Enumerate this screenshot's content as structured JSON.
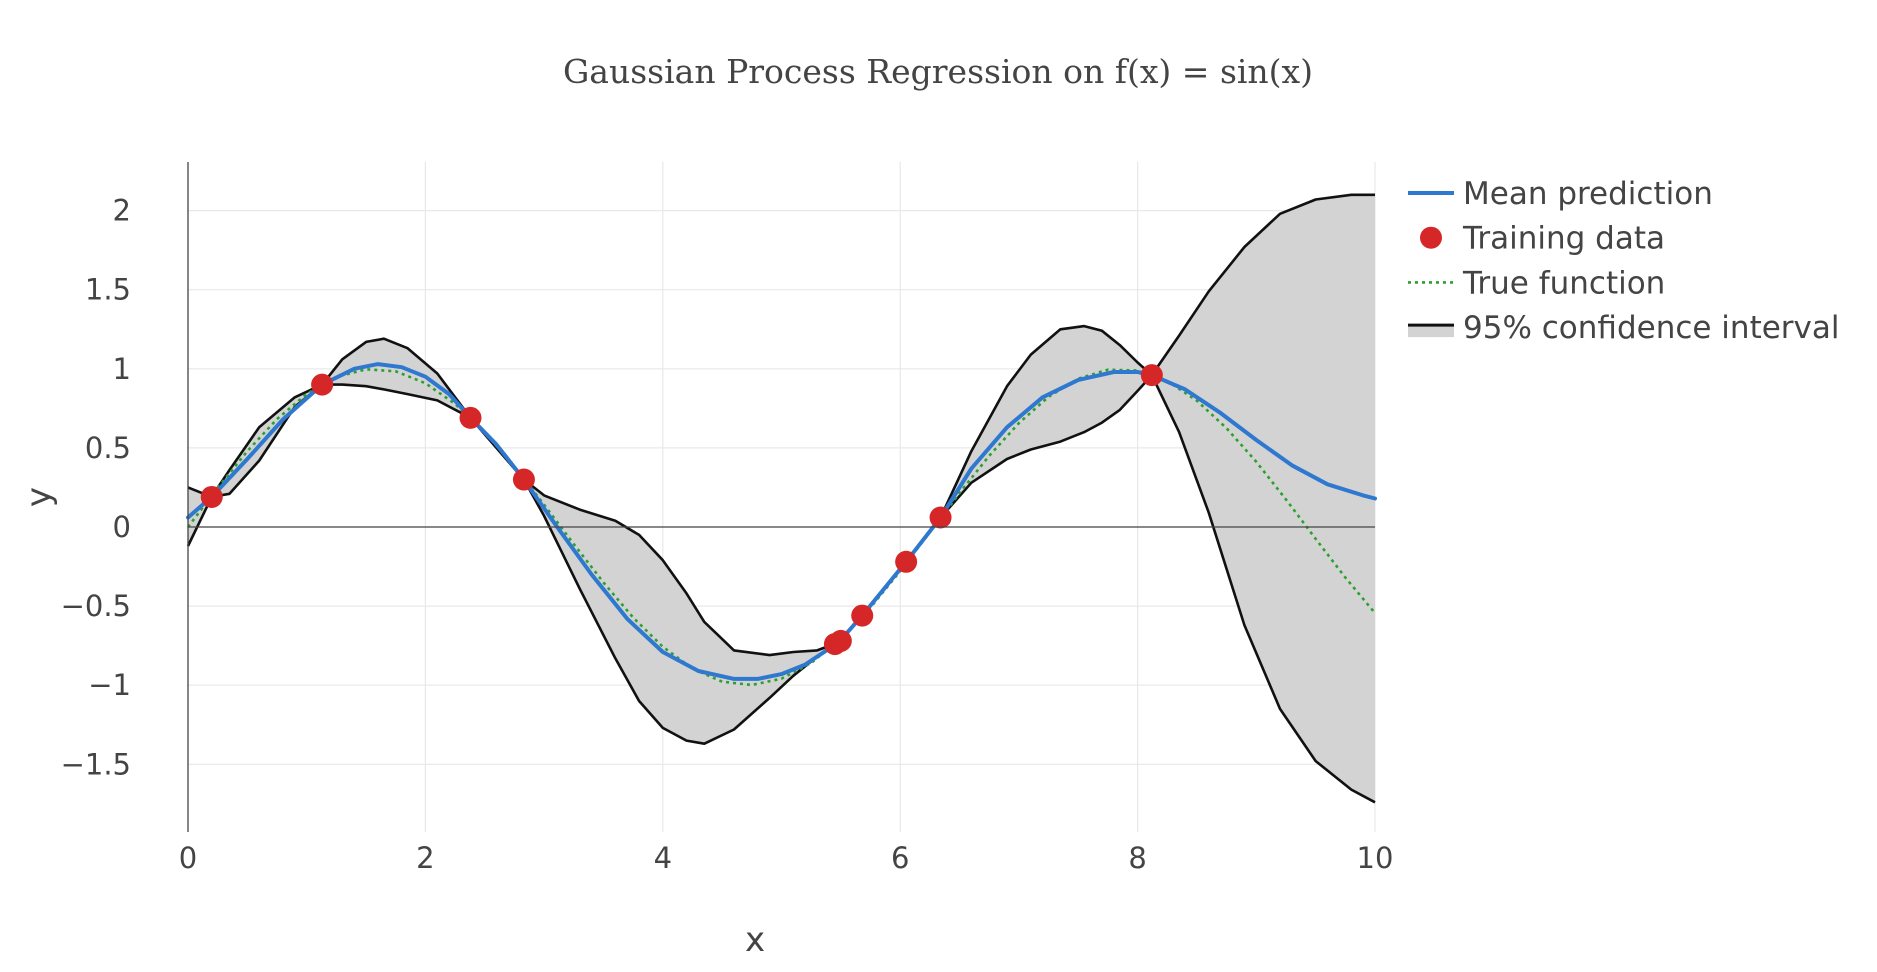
{
  "chart_data": {
    "type": "line",
    "title": "Gaussian Process Regression on f(x) = sin(x)",
    "xlabel": "x",
    "ylabel": "y",
    "xlim": [
      0,
      10
    ],
    "ylim": [
      -1.95,
      2.32
    ],
    "x_ticks": [
      0,
      2,
      4,
      6,
      8,
      10
    ],
    "y_ticks": [
      2,
      1.5,
      1,
      0.5,
      0,
      -0.5,
      -1,
      -1.5
    ],
    "x_tick_labels": [
      "0",
      "2",
      "4",
      "6",
      "8",
      "10"
    ],
    "y_tick_labels": [
      "2",
      "1.5",
      "1",
      "0.5",
      "0",
      "−0.5",
      "−1",
      "−1.5"
    ],
    "grid": true,
    "legend_position": "top-right outside",
    "colors": {
      "mean": "#2f78d0",
      "training": "#d62728",
      "true_function": "#2ca02c",
      "ci_line": "#111111",
      "ci_fill": "#d3d3d3"
    },
    "series": [
      {
        "name": "Mean prediction",
        "style": "solid",
        "x": [
          0,
          0.2,
          0.5,
          0.8,
          1.13,
          1.4,
          1.6,
          1.8,
          2.0,
          2.2,
          2.38,
          2.6,
          2.83,
          3.1,
          3.4,
          3.7,
          4.0,
          4.3,
          4.6,
          4.8,
          5.0,
          5.2,
          5.48,
          5.68,
          6.05,
          6.34,
          6.6,
          6.9,
          7.2,
          7.5,
          7.8,
          8.0,
          8.12,
          8.4,
          8.7,
          9.0,
          9.3,
          9.6,
          9.9,
          10
        ],
        "y": [
          0.06,
          0.19,
          0.43,
          0.68,
          0.9,
          1.0,
          1.03,
          1.01,
          0.95,
          0.84,
          0.69,
          0.52,
          0.3,
          0.01,
          -0.3,
          -0.58,
          -0.79,
          -0.91,
          -0.96,
          -0.96,
          -0.93,
          -0.87,
          -0.73,
          -0.56,
          -0.22,
          0.06,
          0.37,
          0.63,
          0.82,
          0.93,
          0.98,
          0.98,
          0.96,
          0.87,
          0.72,
          0.55,
          0.39,
          0.27,
          0.2,
          0.18
        ]
      },
      {
        "name": "Training data",
        "style": "markers",
        "x": [
          0.2,
          1.13,
          2.38,
          2.83,
          5.45,
          5.5,
          5.68,
          6.05,
          6.34,
          8.12
        ],
        "y": [
          0.19,
          0.9,
          0.69,
          0.3,
          -0.74,
          -0.72,
          -0.56,
          -0.22,
          0.06,
          0.96
        ]
      },
      {
        "name": "True function",
        "style": "dotted",
        "x": [
          0,
          0.25,
          0.5,
          0.75,
          1.0,
          1.25,
          1.5,
          1.75,
          2.0,
          2.25,
          2.5,
          2.75,
          3.0,
          3.25,
          3.5,
          3.75,
          4.0,
          4.25,
          4.5,
          4.75,
          5.0,
          5.25,
          5.5,
          5.75,
          6.0,
          6.25,
          6.5,
          6.75,
          7.0,
          7.25,
          7.5,
          7.75,
          8.0,
          8.25,
          8.5,
          8.75,
          9.0,
          9.25,
          9.5,
          9.75,
          10.0
        ],
        "y": [
          0.0,
          0.247,
          0.479,
          0.682,
          0.841,
          0.949,
          0.997,
          0.984,
          0.909,
          0.778,
          0.598,
          0.382,
          0.141,
          -0.108,
          -0.351,
          -0.572,
          -0.757,
          -0.895,
          -0.978,
          -0.999,
          -0.959,
          -0.859,
          -0.706,
          -0.508,
          -0.279,
          -0.033,
          0.215,
          0.45,
          0.657,
          0.823,
          0.938,
          0.994,
          0.989,
          0.923,
          0.798,
          0.624,
          0.412,
          0.174,
          -0.075,
          -0.319,
          -0.544
        ]
      },
      {
        "name": "95% confidence interval",
        "style": "band",
        "x": [
          0,
          0.2,
          0.35,
          0.6,
          0.9,
          1.13,
          1.3,
          1.5,
          1.65,
          1.85,
          2.1,
          2.38,
          2.83,
          3.0,
          3.3,
          3.6,
          3.8,
          4.0,
          4.2,
          4.35,
          4.6,
          4.9,
          5.1,
          5.3,
          5.48,
          5.68,
          6.05,
          6.34,
          6.6,
          6.9,
          7.1,
          7.35,
          7.55,
          7.7,
          7.85,
          8.0,
          8.12,
          8.35,
          8.6,
          8.9,
          9.2,
          9.5,
          9.8,
          10
        ],
        "upper": [
          0.25,
          0.19,
          0.36,
          0.63,
          0.82,
          0.9,
          1.06,
          1.17,
          1.19,
          1.13,
          0.97,
          0.69,
          0.3,
          0.2,
          0.11,
          0.04,
          -0.05,
          -0.21,
          -0.42,
          -0.6,
          -0.78,
          -0.81,
          -0.79,
          -0.78,
          -0.73,
          -0.56,
          -0.22,
          0.06,
          0.48,
          0.89,
          1.09,
          1.25,
          1.27,
          1.24,
          1.15,
          1.04,
          0.96,
          1.21,
          1.49,
          1.77,
          1.98,
          2.07,
          2.1,
          2.1
        ],
        "lower": [
          -0.12,
          0.19,
          0.21,
          0.42,
          0.76,
          0.9,
          0.9,
          0.89,
          0.87,
          0.84,
          0.8,
          0.69,
          0.3,
          0.07,
          -0.39,
          -0.83,
          -1.1,
          -1.27,
          -1.35,
          -1.37,
          -1.28,
          -1.08,
          -0.94,
          -0.82,
          -0.73,
          -0.56,
          -0.22,
          0.06,
          0.28,
          0.43,
          0.49,
          0.54,
          0.6,
          0.66,
          0.74,
          0.86,
          0.96,
          0.6,
          0.09,
          -0.62,
          -1.15,
          -1.48,
          -1.66,
          -1.74
        ]
      }
    ]
  }
}
